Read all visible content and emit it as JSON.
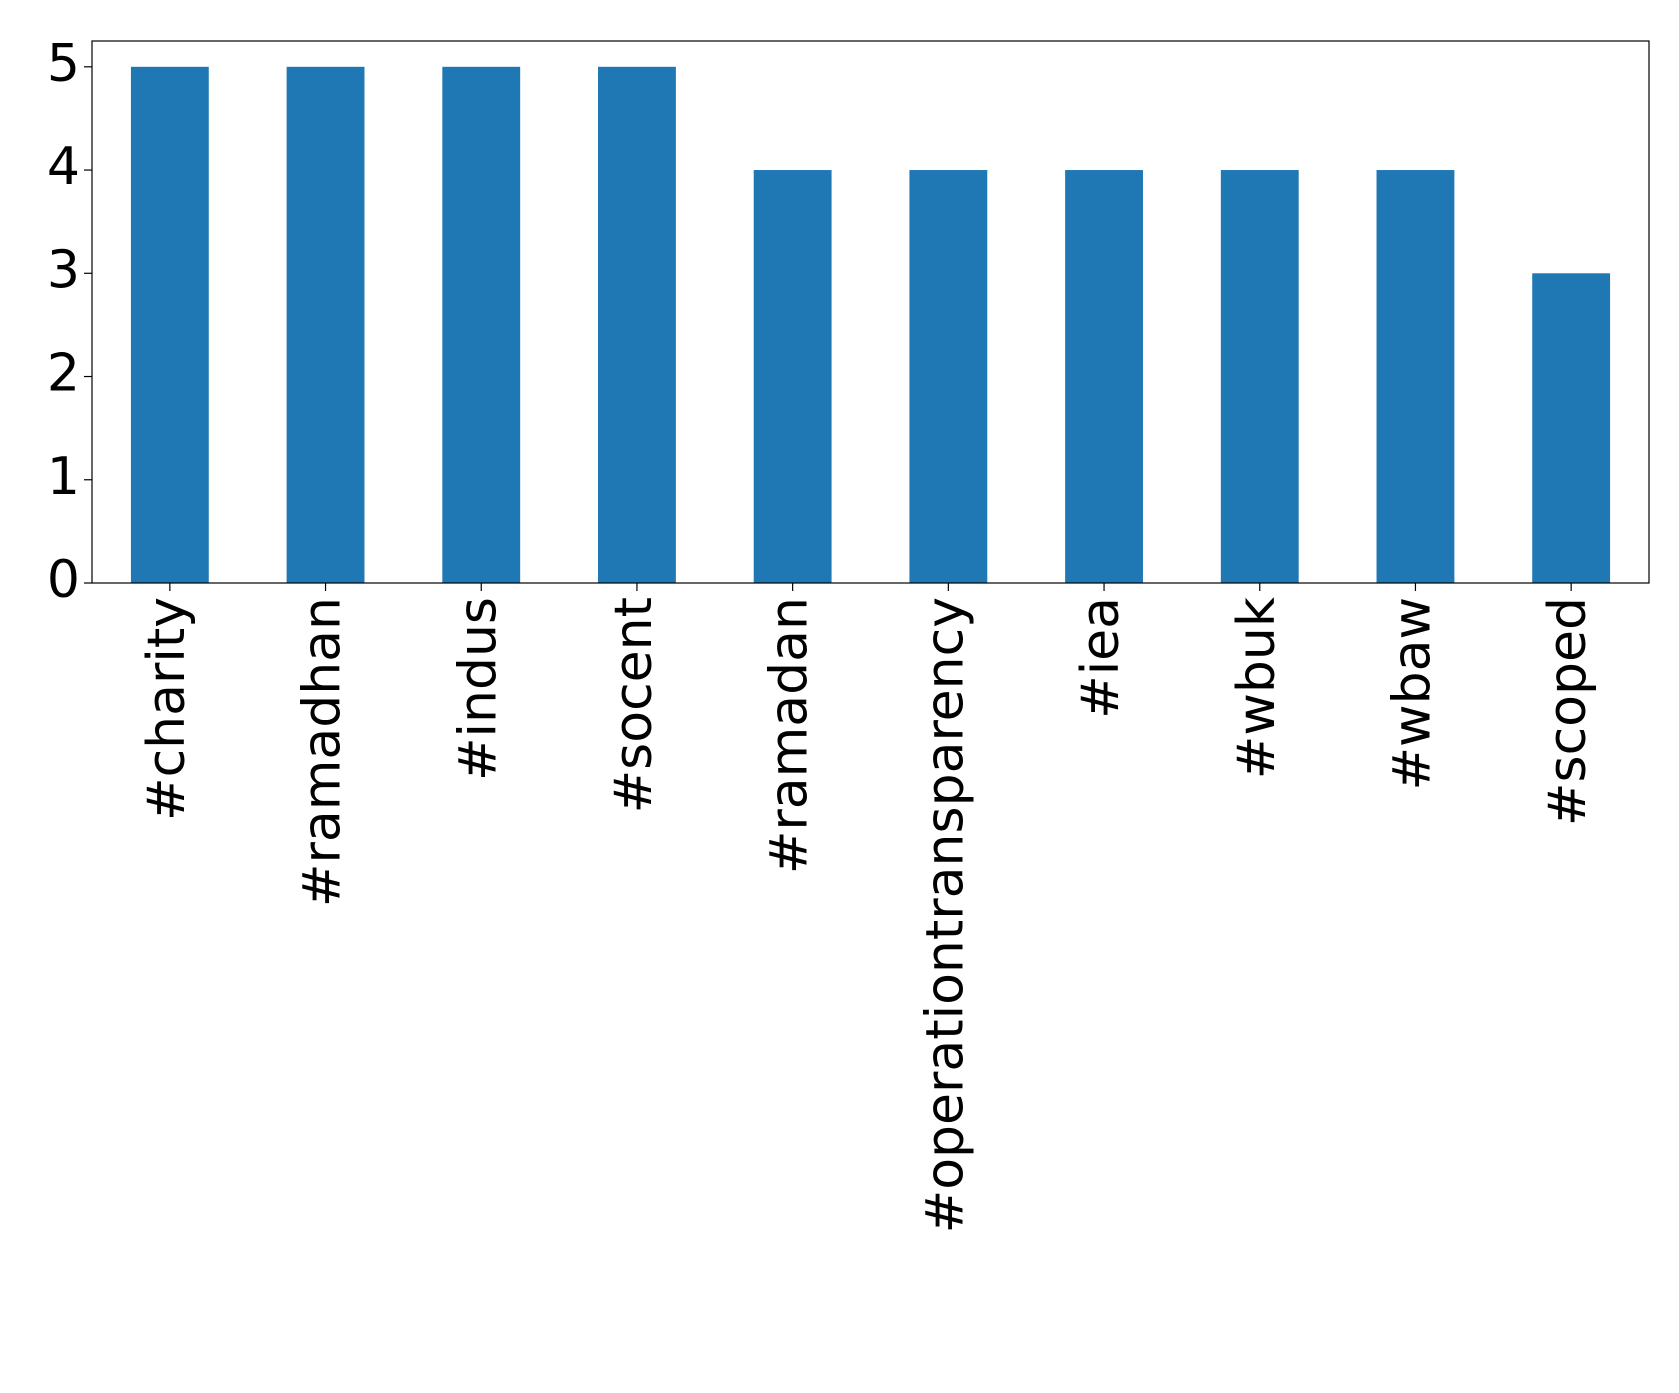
{
  "chart_data": {
    "type": "bar",
    "categories": [
      "#charity",
      "#ramadhan",
      "#indus",
      "#socent",
      "#ramadan",
      "#operationtransparency",
      "#iea",
      "#wbuk",
      "#wbaw",
      "#scoped"
    ],
    "values": [
      5,
      5,
      5,
      5,
      4,
      4,
      4,
      4,
      4,
      3
    ],
    "color": "#1f77b4",
    "ylim": [
      0,
      5.25
    ],
    "yticks": [
      0,
      1,
      2,
      3,
      4,
      5
    ],
    "grid": false
  }
}
